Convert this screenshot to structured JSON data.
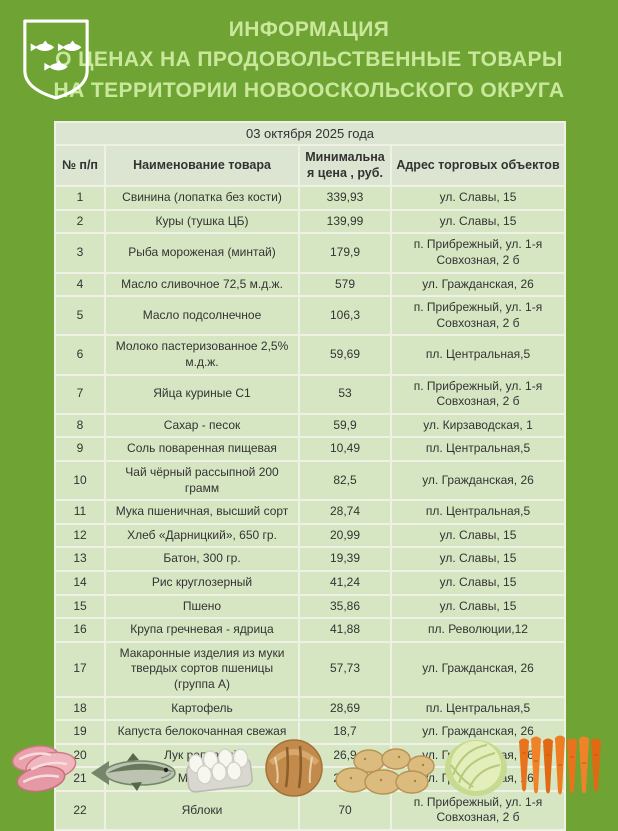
{
  "page": {
    "background_color": "#6fa334"
  },
  "header": {
    "title_lines": [
      "ИНФОРМАЦИЯ",
      "О ЦЕНАХ НА ПРОДОВОЛЬСТВЕННЫЕ ТОВАРЫ",
      "НА ТЕРРИТОРИИ НОВООСКОЛЬСКОГО ОКРУГА"
    ],
    "title_color": "#c9e89c",
    "emblem": "coat-of-arms-three-white-fish-on-green-shield"
  },
  "table": {
    "date_caption": "03 октября 2025 года",
    "columns": [
      "№ п/п",
      "Наименование товара",
      "Минимальная цена , руб.",
      "Адрес торговых объектов"
    ],
    "rows": [
      {
        "num": "1",
        "name": "Свинина (лопатка без кости)",
        "price": "339,93",
        "address": "ул. Славы, 15"
      },
      {
        "num": "2",
        "name": "Куры (тушка ЦБ)",
        "price": "139,99",
        "address": "ул. Славы, 15"
      },
      {
        "num": "3",
        "name": "Рыба мороженая (минтай)",
        "price": "179,9",
        "address": "п. Прибрежный, ул. 1-я Совхозная, 2 б"
      },
      {
        "num": "4",
        "name": "Масло сливочное 72,5 м.д.ж.",
        "price": "579",
        "address": "ул. Гражданская, 26"
      },
      {
        "num": "5",
        "name": "Масло подсолнечное",
        "price": "106,3",
        "address": "п. Прибрежный, ул. 1-я Совхозная, 2 б"
      },
      {
        "num": "6",
        "name": "Молоко пастеризованное 2,5% м.д.ж.",
        "price": "59,69",
        "address": "пл. Центральная,5"
      },
      {
        "num": "7",
        "name": "Яйца куриные С1",
        "price": "53",
        "address": "п. Прибрежный, ул. 1-я Совхозная, 2 б"
      },
      {
        "num": "8",
        "name": "Сахар - песок",
        "price": "59,9",
        "address": "ул. Кирзаводская, 1"
      },
      {
        "num": "9",
        "name": "Соль поваренная пищевая",
        "price": "10,49",
        "address": "пл. Центральная,5"
      },
      {
        "num": "10",
        "name": "Чай чёрный рассыпной 200 грамм",
        "price": "82,5",
        "address": "ул. Гражданская, 26"
      },
      {
        "num": "11",
        "name": "Мука пшеничная, высший сорт",
        "price": "28,74",
        "address": "пл. Центральная,5"
      },
      {
        "num": "12",
        "name": "Хлеб «Дарницкий», 650 гр.",
        "price": "20,99",
        "address": "ул. Славы, 15"
      },
      {
        "num": "13",
        "name": "Батон, 300 гр.",
        "price": "19,39",
        "address": "ул. Славы, 15"
      },
      {
        "num": "14",
        "name": "Рис круглозерный",
        "price": "41,24",
        "address": "ул. Славы, 15"
      },
      {
        "num": "15",
        "name": "Пшено",
        "price": "35,86",
        "address": "ул. Славы, 15"
      },
      {
        "num": "16",
        "name": "Крупа гречневая - ядрица",
        "price": "41,88",
        "address": "пл. Революции,12"
      },
      {
        "num": "17",
        "name": "Макаронные изделия из муки твердых сортов пшеницы (группа А)",
        "price": "57,73",
        "address": "ул. Гражданская, 26"
      },
      {
        "num": "18",
        "name": "Картофель",
        "price": "28,69",
        "address": "пл. Центральная,5"
      },
      {
        "num": "19",
        "name": "Капуста белокочанная свежая",
        "price": "18,7",
        "address": "ул. Гражданская, 26"
      },
      {
        "num": "20",
        "name": "Лук репчатый",
        "price": "26,9",
        "address": "ул. Гражданская, 26"
      },
      {
        "num": "21",
        "name": "Морковь",
        "price": "25,7",
        "address": "ул. Гражданская, 26"
      },
      {
        "num": "22",
        "name": "Яблоки",
        "price": "70",
        "address": "п. Прибрежный, ул. 1-я Совхозная, 2 б"
      }
    ]
  },
  "footer": {
    "food_images": [
      "pork-meat",
      "raw-fish",
      "egg-tray",
      "bread-loaf",
      "potatoes",
      "cabbage",
      "carrots"
    ]
  }
}
